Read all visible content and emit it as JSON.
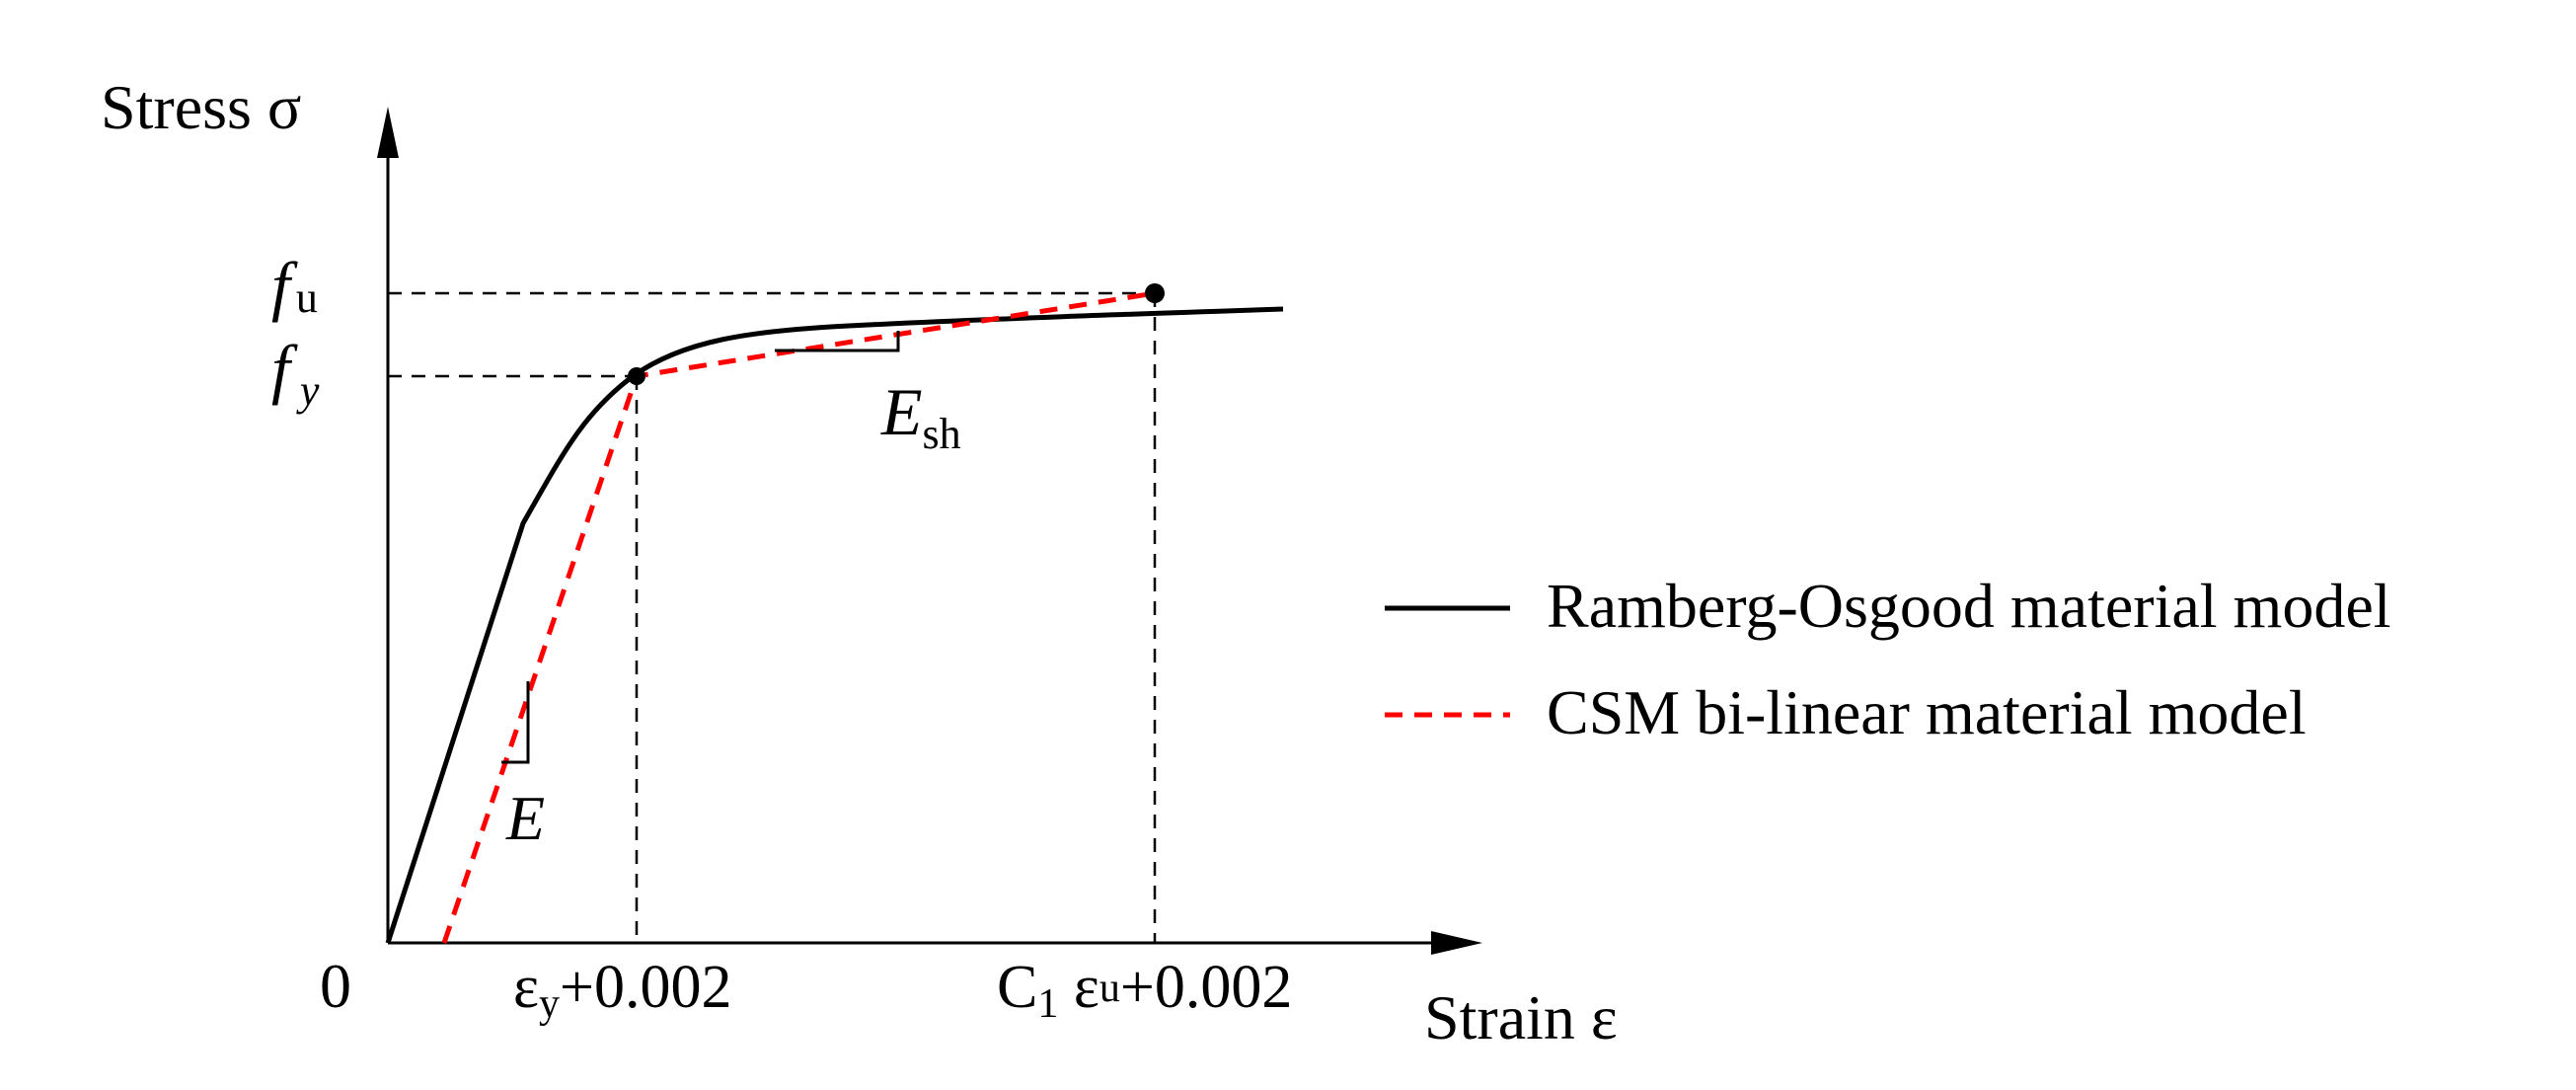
{
  "chart_data": {
    "type": "line",
    "title": "",
    "axes": {
      "y_label": "Stress σ",
      "x_label": "Strain ε",
      "origin_label": "0"
    },
    "stress_levels": {
      "fu": {
        "main": "f",
        "sub": "u"
      },
      "fy": {
        "main": "f",
        "sub": "y"
      }
    },
    "strain_points": {
      "eps_y": {
        "pre": "ε",
        "sub": "y",
        "post": "+0.002"
      },
      "eps_u": {
        "pre": "C",
        "sub1": "1",
        "mid": " ε",
        "sub2": "u",
        "post": "+0.002"
      }
    },
    "slope_labels": {
      "E": "E",
      "Esh": {
        "main": "E",
        "sub": "sh"
      }
    },
    "series": [
      {
        "name": "Ramberg-Osgood material model",
        "style": "solid",
        "color": "#000000"
      },
      {
        "name": "CSM bi-linear material model",
        "style": "dashed",
        "color": "#ff0000"
      }
    ]
  }
}
